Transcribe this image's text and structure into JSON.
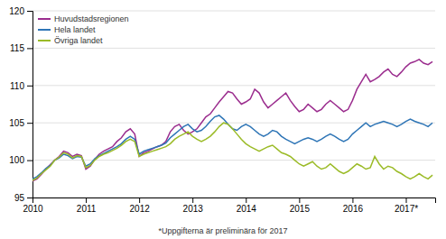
{
  "chart_data": {
    "type": "line",
    "annotations": [
      "*Uppgifterna är preliminära för 2017"
    ],
    "x": [
      2010,
      2010.0833333333333,
      2010.1666666666667,
      2010.25,
      2010.3333333333333,
      2010.4166666666667,
      2010.5,
      2010.5833333333333,
      2010.6666666666667,
      2010.75,
      2010.8333333333333,
      2010.9166666666667,
      2011,
      2011.0833333333333,
      2011.1666666666667,
      2011.25,
      2011.3333333333333,
      2011.4166666666667,
      2011.5,
      2011.5833333333333,
      2011.6666666666667,
      2011.75,
      2011.8333333333333,
      2011.9166666666667,
      2012,
      2012.0833333333333,
      2012.1666666666667,
      2012.25,
      2012.3333333333333,
      2012.4166666666667,
      2012.5,
      2012.5833333333333,
      2012.6666666666667,
      2012.75,
      2012.8333333333333,
      2012.9166666666667,
      2013,
      2013.0833333333333,
      2013.1666666666667,
      2013.25,
      2013.3333333333333,
      2013.4166666666667,
      2013.5,
      2013.5833333333333,
      2013.6666666666667,
      2013.75,
      2013.8333333333333,
      2013.9166666666667,
      2014,
      2014.0833333333333,
      2014.1666666666667,
      2014.25,
      2014.3333333333333,
      2014.4166666666667,
      2014.5,
      2014.5833333333333,
      2014.6666666666667,
      2014.75,
      2014.8333333333333,
      2014.9166666666667,
      2015,
      2015.0833333333333,
      2015.1666666666667,
      2015.25,
      2015.3333333333333,
      2015.4166666666667,
      2015.5,
      2015.5833333333333,
      2015.6666666666667,
      2015.75,
      2015.8333333333333,
      2015.9166666666667,
      2016,
      2016.0833333333333,
      2016.1666666666667,
      2016.25,
      2016.3333333333333,
      2016.4166666666667,
      2016.5,
      2016.5833333333333,
      2016.6666666666667,
      2016.75,
      2016.8333333333333,
      2016.9166666666667,
      2017,
      2017.0833333333333,
      2017.1666666666667,
      2017.25,
      2017.3333333333333,
      2017.4166666666667,
      2017.5
    ],
    "series": [
      {
        "name": "Huvudstadsregionen",
        "color": "#9B2D8E",
        "values": [
          97.2,
          97.5,
          98.1,
          98.8,
          99.4,
          100.0,
          100.5,
          101.2,
          101.0,
          100.5,
          100.8,
          100.6,
          98.8,
          99.2,
          100.1,
          100.8,
          101.2,
          101.5,
          101.8,
          102.5,
          103.0,
          103.8,
          104.2,
          103.5,
          100.5,
          101.0,
          101.2,
          101.5,
          101.8,
          102.0,
          102.5,
          103.8,
          104.5,
          104.8,
          104.0,
          103.5,
          103.8,
          104.2,
          105.0,
          105.8,
          106.2,
          107.0,
          107.8,
          108.5,
          109.2,
          109.0,
          108.2,
          107.5,
          107.8,
          108.2,
          109.5,
          109.0,
          107.8,
          107.0,
          107.5,
          108.0,
          108.5,
          109.0,
          108.0,
          107.2,
          106.5,
          106.8,
          107.5,
          107.0,
          106.5,
          106.8,
          107.5,
          108.0,
          107.5,
          107.0,
          106.5,
          106.8,
          108.0,
          109.5,
          110.5,
          111.5,
          110.5,
          110.8,
          111.2,
          111.8,
          112.2,
          111.5,
          111.2,
          111.8,
          112.5,
          113.0,
          113.2,
          113.5,
          113.0,
          112.8,
          113.2
        ]
      },
      {
        "name": "Hela landet",
        "color": "#2E75B6",
        "values": [
          97.5,
          97.8,
          98.3,
          98.9,
          99.3,
          100.0,
          100.3,
          100.8,
          100.6,
          100.2,
          100.5,
          100.4,
          99.2,
          99.5,
          100.2,
          100.6,
          100.9,
          101.2,
          101.5,
          101.8,
          102.2,
          102.8,
          103.2,
          102.8,
          100.8,
          101.2,
          101.4,
          101.6,
          101.8,
          102.0,
          102.3,
          103.0,
          103.5,
          104.0,
          104.5,
          104.8,
          104.2,
          103.8,
          104.0,
          104.5,
          105.2,
          105.8,
          106.0,
          105.5,
          104.8,
          104.2,
          104.0,
          104.5,
          104.8,
          104.5,
          104.0,
          103.5,
          103.2,
          103.5,
          104.0,
          103.8,
          103.2,
          102.8,
          102.5,
          102.2,
          102.5,
          102.8,
          103.0,
          102.8,
          102.5,
          102.8,
          103.2,
          103.5,
          103.2,
          102.8,
          102.5,
          102.8,
          103.5,
          104.0,
          104.5,
          105.0,
          104.5,
          104.8,
          105.0,
          105.2,
          105.0,
          104.8,
          104.5,
          104.8,
          105.2,
          105.5,
          105.2,
          105.0,
          104.8,
          104.5,
          105.0
        ]
      },
      {
        "name": "Övriga landet",
        "color": "#9BBB27",
        "values": [
          97.3,
          97.6,
          98.2,
          98.7,
          99.2,
          100.0,
          100.4,
          101.0,
          100.8,
          100.3,
          100.6,
          100.5,
          99.0,
          99.3,
          100.0,
          100.5,
          100.8,
          101.0,
          101.3,
          101.6,
          102.0,
          102.5,
          102.8,
          102.5,
          100.5,
          100.8,
          101.0,
          101.2,
          101.4,
          101.6,
          101.8,
          102.2,
          102.8,
          103.2,
          103.5,
          103.8,
          103.2,
          102.8,
          102.5,
          102.8,
          103.2,
          103.8,
          104.5,
          105.0,
          104.8,
          104.2,
          103.5,
          102.8,
          102.2,
          101.8,
          101.5,
          101.2,
          101.5,
          101.8,
          102.0,
          101.5,
          101.0,
          100.8,
          100.5,
          100.0,
          99.5,
          99.2,
          99.5,
          99.8,
          99.2,
          98.8,
          99.0,
          99.5,
          99.0,
          98.5,
          98.2,
          98.5,
          99.0,
          99.5,
          99.2,
          98.8,
          99.0,
          100.5,
          99.5,
          98.8,
          99.2,
          99.0,
          98.5,
          98.2,
          97.8,
          97.5,
          97.8,
          98.2,
          97.8,
          97.5,
          98.0
        ]
      }
    ],
    "xlim": [
      2010,
      2017.55
    ],
    "xticks": [
      2010,
      2011,
      2012,
      2013,
      2014,
      2015,
      2016,
      {
        "value": 2017,
        "label": "2017*"
      }
    ],
    "ylim": [
      95,
      120
    ],
    "yticks": [
      95,
      100,
      105,
      110,
      115,
      120
    ],
    "grid": true,
    "legend": "upper left"
  }
}
